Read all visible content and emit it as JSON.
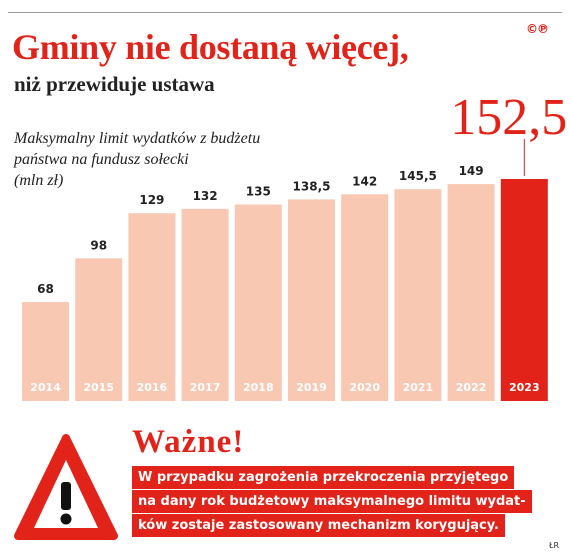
{
  "header": {
    "copyright_mark": "©℗",
    "title": "Gminy nie dostaną więcej,",
    "subtitle": "niż przewiduje ustawa"
  },
  "chart_data": {
    "type": "bar",
    "title": "Maksymalny limit wydatków z budżetu państwa na fundusz sołecki (mln zł)",
    "categories": [
      "2014",
      "2015",
      "2016",
      "2017",
      "2018",
      "2019",
      "2020",
      "2021",
      "2022",
      "2023"
    ],
    "values": [
      68,
      98,
      129,
      132,
      135,
      138.5,
      142,
      145.5,
      149,
      152.5
    ],
    "value_labels": [
      "68",
      "98",
      "129",
      "132",
      "135",
      "138,5",
      "142",
      "145,5",
      "149",
      "152,5"
    ],
    "highlight_index": 9,
    "colors": {
      "bar": "#f8c8b3",
      "highlight": "#e2231a",
      "text": "#222222"
    },
    "ylim": [
      0,
      152.5
    ],
    "grid": false,
    "legend": "none"
  },
  "chart_desc_lines": [
    "Maksymalny limit wydatków z budżetu",
    "państwa na fundusz sołecki",
    "(mln zł)"
  ],
  "warning": {
    "icon": "warning-triangle-icon",
    "heading": "Ważne!",
    "lines": [
      "W przypadku zagrożenia przekroczenia przyjętego",
      "na dany rok budżetowy maksymalnego limitu wydat-",
      "ków zostaje zastosowany mechanizm korygujący."
    ]
  },
  "credit": "ŁR"
}
